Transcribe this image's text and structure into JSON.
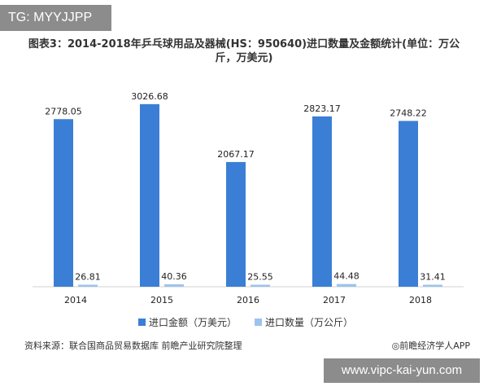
{
  "watermark_top": "TG: MYYJJPP",
  "watermark_bottom": "www.vipc-kai-yun.com",
  "footer": {
    "source": "资料来源：联合国商品贸易数据库 前瞻产业研究院整理",
    "brand": "◎前瞻经济学人APP"
  },
  "chart_data": {
    "type": "bar",
    "title": "图表3：2014-2018年乒乓球用品及器械(HS：950640)进口数量及金额统计(单位：万公斤，万美元)",
    "categories": [
      "2014",
      "2015",
      "2016",
      "2017",
      "2018"
    ],
    "series": [
      {
        "name": "进口金额（万美元）",
        "values": [
          2778.05,
          3026.68,
          2067.17,
          2823.17,
          2748.22
        ],
        "color": "#3a7fd5"
      },
      {
        "name": "进口数量（万公斤）",
        "values": [
          26.81,
          40.36,
          25.55,
          44.48,
          31.41
        ],
        "color": "#9cc3ee"
      }
    ],
    "ylim": [
      0,
      3200
    ],
    "legend_position": "bottom",
    "grid": false
  }
}
